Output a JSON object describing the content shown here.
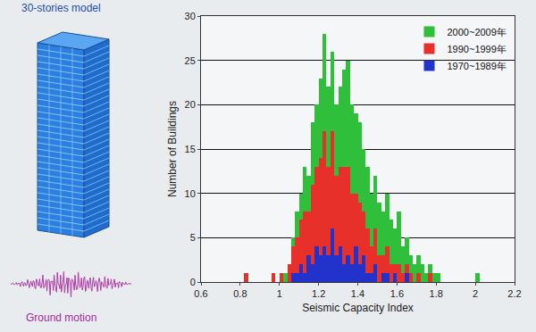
{
  "chart_data": {
    "type": "histogram",
    "xlabel": "Seismic Capacity Index",
    "ylabel": "Number of Buildings",
    "annotations": [
      "30-stories model",
      "Ground motion"
    ],
    "bins": [
      0.8,
      0.82,
      0.84,
      0.86,
      0.88,
      0.9,
      0.92,
      0.94,
      0.96,
      0.98,
      1.0,
      1.02,
      1.04,
      1.06,
      1.08,
      1.1,
      1.12,
      1.14,
      1.16,
      1.18,
      1.2,
      1.22,
      1.24,
      1.26,
      1.28,
      1.3,
      1.32,
      1.34,
      1.36,
      1.38,
      1.4,
      1.42,
      1.44,
      1.46,
      1.48,
      1.5,
      1.52,
      1.54,
      1.56,
      1.58,
      1.6,
      1.62,
      1.64,
      1.66,
      1.68,
      1.7,
      1.72,
      1.74,
      1.76,
      1.78,
      1.8,
      1.82,
      1.84,
      1.86,
      1.88,
      1.9,
      1.92,
      1.94,
      1.96,
      1.98,
      2.0,
      2.02,
      2.04
    ],
    "series": [
      {
        "name": "2000~2009年",
        "color": "#2fbf3a",
        "values": [
          0,
          0,
          0,
          0,
          0,
          0,
          0,
          0,
          0,
          0,
          0,
          1,
          0,
          1,
          3,
          3,
          5,
          4,
          7,
          7,
          9,
          11,
          9,
          9,
          8,
          9,
          11,
          12,
          10,
          9,
          9,
          7,
          7,
          6,
          6,
          6,
          5,
          6,
          5,
          4,
          6,
          3,
          3,
          2,
          2,
          2,
          2,
          1,
          1,
          1,
          1,
          0,
          0,
          0,
          0,
          0,
          0,
          0,
          0,
          0,
          1,
          0
        ]
      },
      {
        "name": "1990~1999年",
        "color": "#e8302a",
        "values": [
          0,
          1,
          0,
          0,
          0,
          0,
          0,
          0,
          1,
          0,
          1,
          0,
          2,
          3,
          4,
          5,
          7,
          5,
          9,
          9,
          11,
          13,
          10,
          11,
          9,
          9,
          11,
          10,
          8,
          6,
          7,
          5,
          5,
          3,
          4,
          3,
          2,
          3,
          2,
          1,
          2,
          1,
          1,
          1,
          0,
          1,
          0,
          0,
          1,
          0,
          0,
          0,
          0,
          0,
          0,
          0,
          0,
          0,
          0,
          0,
          0,
          0
        ]
      },
      {
        "name": "1970~1989年",
        "color": "#2233cc",
        "values": [
          0,
          0,
          0,
          0,
          0,
          0,
          0,
          0,
          0,
          0,
          0,
          0,
          0,
          1,
          1,
          2,
          1,
          3,
          2,
          4,
          3,
          4,
          3,
          6,
          3,
          4,
          2,
          3,
          2,
          4,
          2,
          3,
          1,
          1,
          2,
          0,
          1,
          1,
          0,
          1,
          0,
          0,
          1,
          0,
          0,
          0,
          0,
          0,
          0,
          0,
          0,
          0,
          0,
          0,
          0,
          0,
          0,
          0,
          0,
          0,
          0,
          0
        ]
      }
    ],
    "xlim": [
      0.6,
      2.2
    ],
    "xticks": [
      0.6,
      0.8,
      1,
      1.2,
      1.4,
      1.6,
      1.8,
      2,
      2.2
    ],
    "ylim": [
      0,
      30
    ],
    "yticks": [
      0,
      5,
      10,
      15,
      20,
      25,
      30
    ],
    "stacked": true,
    "grid": true,
    "legend": "upper right"
  }
}
